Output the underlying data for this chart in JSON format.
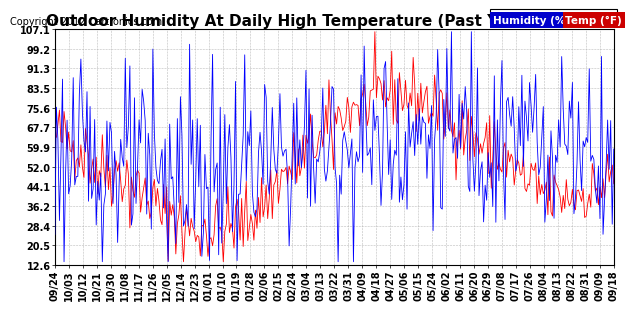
{
  "title": "Outdoor Humidity At Daily High Temperature (Past Year) 20120924",
  "copyright": "Copyright 2012 Cartronics.com",
  "legend_humidity_label": "Humidity (%)",
  "legend_temp_label": "Temp (°F)",
  "humidity_color": "#0000ff",
  "temp_color": "#ff0000",
  "humidity_bg": "#0000cc",
  "temp_bg": "#cc0000",
  "background_color": "#ffffff",
  "grid_color": "#aaaaaa",
  "yticks": [
    12.6,
    20.5,
    28.4,
    36.2,
    44.1,
    52.0,
    59.9,
    67.7,
    75.6,
    83.5,
    91.3,
    99.2,
    107.1
  ],
  "ylim_min": 12.6,
  "ylim_max": 107.1,
  "title_fontsize": 11,
  "copyright_fontsize": 7,
  "tick_label_fontsize": 7,
  "legend_fontsize": 7.5,
  "x_dates": [
    "09/24",
    "10/03",
    "10/12",
    "10/21",
    "10/30",
    "11/08",
    "11/17",
    "11/26",
    "12/05",
    "12/14",
    "12/23",
    "01/01",
    "01/10",
    "01/19",
    "01/28",
    "02/06",
    "02/15",
    "02/24",
    "03/04",
    "03/13",
    "03/22",
    "03/31",
    "04/09",
    "04/18",
    "04/27",
    "05/06",
    "05/15",
    "05/24",
    "06/02",
    "06/11",
    "06/20",
    "06/29",
    "07/08",
    "07/17",
    "07/26",
    "08/04",
    "08/13",
    "08/22",
    "08/31",
    "09/09",
    "09/18"
  ]
}
